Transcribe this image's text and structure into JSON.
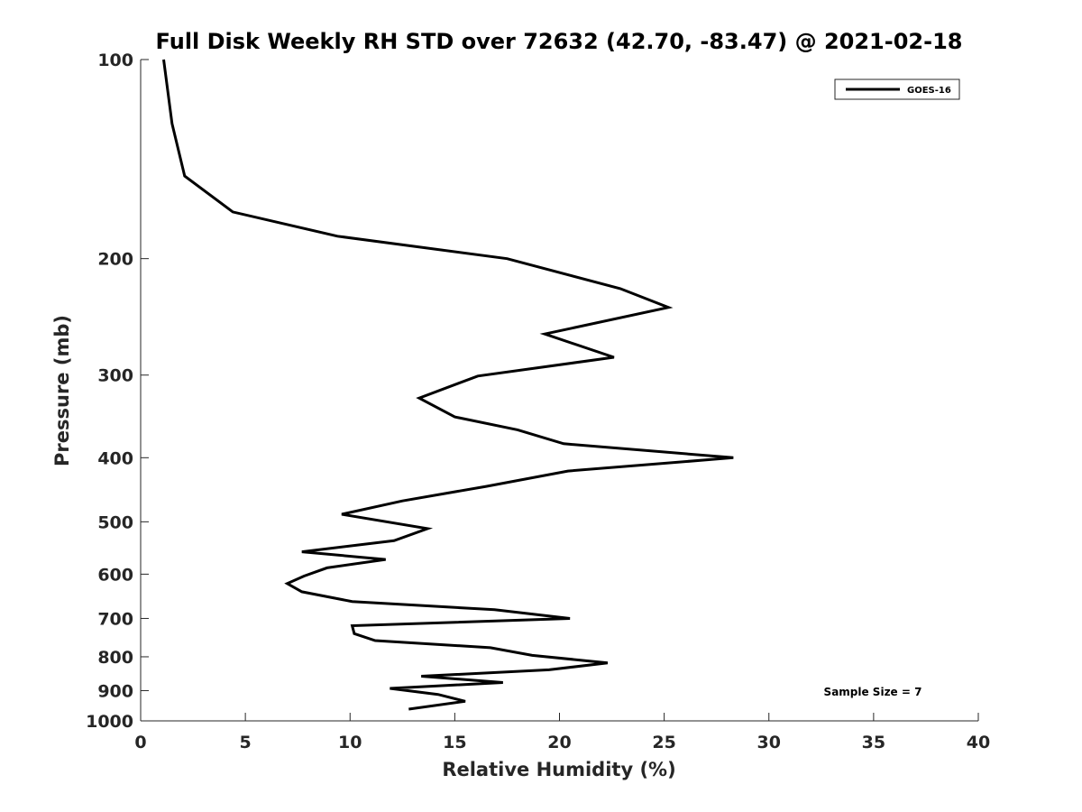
{
  "chart_data": {
    "type": "line",
    "title": "Full Disk Weekly RH STD over 72632 (42.70, -83.47) @ 2021-02-18",
    "xlabel": "Relative Humidity (%)",
    "ylabel": "Pressure (mb)",
    "xlim": [
      0,
      40
    ],
    "ylim": [
      1000,
      100
    ],
    "yscale": "log",
    "grid": false,
    "legend_position": "top-right",
    "xticks": [
      0,
      5,
      10,
      15,
      20,
      25,
      30,
      35,
      40
    ],
    "xtick_labels": [
      "0",
      "5",
      "10",
      "15",
      "20",
      "25",
      "30",
      "35",
      "40"
    ],
    "yticks": [
      100,
      200,
      300,
      400,
      500,
      600,
      700,
      800,
      900,
      1000
    ],
    "ytick_labels": [
      "100",
      "200",
      "300",
      "400",
      "500",
      "600",
      "700",
      "800",
      "900",
      "1000"
    ],
    "series": [
      {
        "name": "GOES-16",
        "color": "#000000",
        "x": [
          1.1,
          1.5,
          2.1,
          4.4,
          9.4,
          17.5,
          22.9,
          25.2,
          19.3,
          22.6,
          16.1,
          13.3,
          15.0,
          18.0,
          20.2,
          28.3,
          20.4,
          16.5,
          12.5,
          9.6,
          13.7,
          12.1,
          7.7,
          11.7,
          8.9,
          7.8,
          7.0,
          7.7,
          10.1,
          16.9,
          20.5,
          10.1,
          10.2,
          11.2,
          16.7,
          18.7,
          22.3,
          19.5,
          13.4,
          17.3,
          11.9,
          14.2,
          15.5,
          12.8
        ],
        "y": [
          100,
          125,
          150,
          170,
          185,
          200,
          222,
          237,
          260,
          282,
          301,
          325,
          347,
          363,
          381,
          400,
          419,
          442,
          465,
          487,
          512,
          534,
          555,
          570,
          587,
          604,
          620,
          638,
          660,
          679,
          700,
          718,
          738,
          756,
          775,
          796,
          817,
          837,
          856,
          875,
          893,
          912,
          934,
          960
        ]
      }
    ],
    "annotations": [
      {
        "text": "Sample Size = 7"
      }
    ]
  }
}
